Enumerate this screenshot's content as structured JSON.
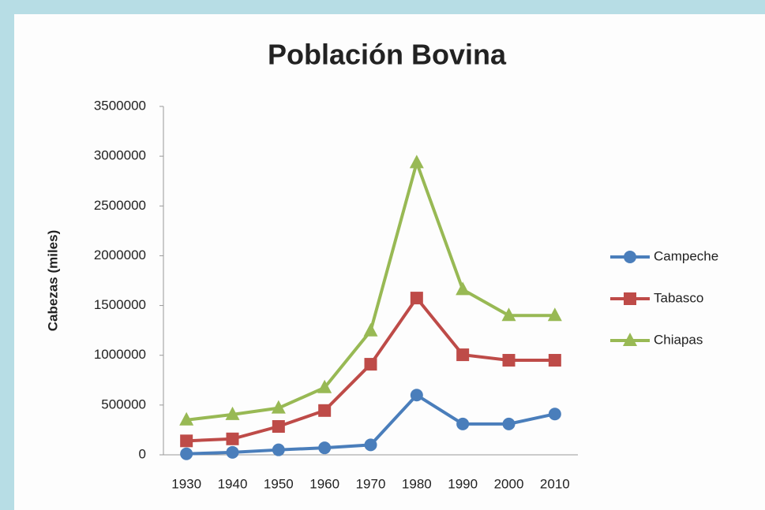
{
  "chart_data": {
    "type": "line",
    "title": "Población Bovina",
    "y_label": "Cabezas (miles)",
    "categories": [
      "1930",
      "1940",
      "1950",
      "1960",
      "1970",
      "1980",
      "1990",
      "2000",
      "2010"
    ],
    "series": [
      {
        "name": "Campeche",
        "color": "#4a7ebb",
        "marker": "circle",
        "values": [
          10000,
          25000,
          50000,
          70000,
          100000,
          600000,
          310000,
          310000,
          410000
        ]
      },
      {
        "name": "Tabasco",
        "color": "#be4b48",
        "marker": "square",
        "values": [
          140000,
          160000,
          285000,
          445000,
          910000,
          1575000,
          1005000,
          950000,
          950000
        ]
      },
      {
        "name": "Chiapas",
        "color": "#98b954",
        "marker": "triangle",
        "values": [
          350000,
          405000,
          470000,
          675000,
          1245000,
          2935000,
          1660000,
          1400000,
          1400000
        ]
      }
    ],
    "ylim": [
      0,
      3500000
    ],
    "yticks": [
      0,
      500000,
      1000000,
      1500000,
      2000000,
      2500000,
      3000000,
      3500000
    ],
    "grid": false,
    "legend": "right"
  }
}
